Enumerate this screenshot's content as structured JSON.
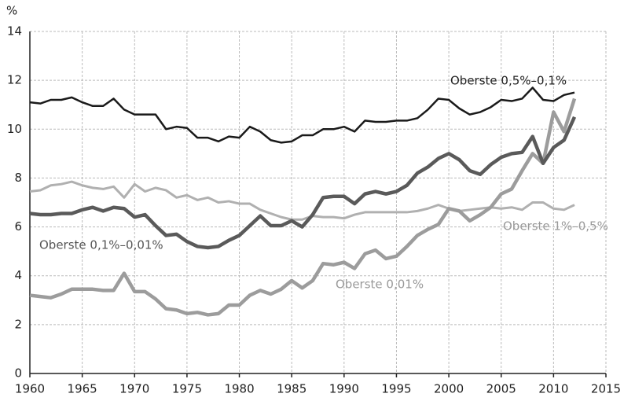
{
  "chart_data": {
    "type": "line",
    "y_label": "%",
    "x": [
      1960,
      1961,
      1962,
      1963,
      1964,
      1965,
      1966,
      1967,
      1968,
      1969,
      1970,
      1971,
      1972,
      1973,
      1974,
      1975,
      1976,
      1977,
      1978,
      1979,
      1980,
      1981,
      1982,
      1983,
      1984,
      1985,
      1986,
      1987,
      1988,
      1989,
      1990,
      1991,
      1992,
      1993,
      1994,
      1995,
      1996,
      1997,
      1998,
      1999,
      2000,
      2001,
      2002,
      2003,
      2004,
      2005,
      2006,
      2007,
      2008,
      2009,
      2010,
      2011,
      2012
    ],
    "series": [
      {
        "name": "Oberste 0,5%–0,1%",
        "color": "#1a1a1a",
        "values": [
          11.1,
          11.05,
          11.2,
          11.2,
          11.3,
          11.1,
          10.95,
          10.95,
          11.25,
          10.8,
          10.6,
          10.6,
          10.6,
          10.0,
          10.1,
          10.05,
          9.65,
          9.65,
          9.5,
          9.7,
          9.65,
          10.1,
          9.9,
          9.55,
          9.45,
          9.5,
          9.75,
          9.75,
          10.0,
          10.0,
          10.1,
          9.9,
          10.35,
          10.3,
          10.3,
          10.35,
          10.35,
          10.45,
          10.8,
          11.25,
          11.2,
          10.85,
          10.6,
          10.7,
          10.9,
          11.2,
          11.15,
          11.25,
          11.7,
          11.2,
          11.15,
          11.4,
          11.5
        ]
      },
      {
        "name": "Oberste 0,1%–0,01%",
        "color": "#5a5a5a",
        "values": [
          6.55,
          6.5,
          6.5,
          6.55,
          6.55,
          6.7,
          6.8,
          6.65,
          6.8,
          6.75,
          6.4,
          6.5,
          6.05,
          5.65,
          5.7,
          5.4,
          5.2,
          5.15,
          5.2,
          5.45,
          5.65,
          6.05,
          6.45,
          6.05,
          6.05,
          6.25,
          6.0,
          6.5,
          7.2,
          7.25,
          7.25,
          6.95,
          7.35,
          7.45,
          7.35,
          7.45,
          7.7,
          8.2,
          8.45,
          8.8,
          9.0,
          8.75,
          8.3,
          8.15,
          8.55,
          8.85,
          9.0,
          9.05,
          9.7,
          8.6,
          9.25,
          9.55,
          10.5
        ]
      },
      {
        "name": "Oberste 1%–0,5%",
        "color": "#b0b0b0",
        "values": [
          7.45,
          7.5,
          7.7,
          7.75,
          7.85,
          7.7,
          7.6,
          7.55,
          7.65,
          7.2,
          7.75,
          7.45,
          7.6,
          7.5,
          7.2,
          7.3,
          7.1,
          7.2,
          7.0,
          7.05,
          6.95,
          6.95,
          6.7,
          6.55,
          6.4,
          6.3,
          6.3,
          6.45,
          6.4,
          6.4,
          6.35,
          6.5,
          6.6,
          6.6,
          6.6,
          6.6,
          6.6,
          6.65,
          6.75,
          6.9,
          6.75,
          6.65,
          6.7,
          6.75,
          6.8,
          6.75,
          6.8,
          6.7,
          7.0,
          7.0,
          6.75,
          6.7,
          6.9
        ]
      },
      {
        "name": "Oberste 0,01%",
        "color": "#9c9c9c",
        "values": [
          3.2,
          3.15,
          3.1,
          3.25,
          3.45,
          3.45,
          3.45,
          3.4,
          3.4,
          4.1,
          3.35,
          3.35,
          3.05,
          2.65,
          2.6,
          2.45,
          2.5,
          2.4,
          2.45,
          2.8,
          2.8,
          3.2,
          3.4,
          3.25,
          3.45,
          3.8,
          3.5,
          3.8,
          4.5,
          4.45,
          4.55,
          4.3,
          4.9,
          5.05,
          4.7,
          4.8,
          5.2,
          5.65,
          5.9,
          6.1,
          6.75,
          6.65,
          6.25,
          6.5,
          6.8,
          7.35,
          7.55,
          8.3,
          9.0,
          8.6,
          10.7,
          9.9,
          11.25
        ]
      }
    ],
    "xlim": [
      1960,
      2015
    ],
    "xticks": [
      1960,
      1965,
      1970,
      1975,
      1980,
      1985,
      1990,
      1995,
      2000,
      2005,
      2010,
      2015
    ],
    "ylim": [
      0,
      14
    ],
    "yticks": [
      0,
      2,
      4,
      6,
      8,
      10,
      12,
      14
    ],
    "grid": true
  }
}
